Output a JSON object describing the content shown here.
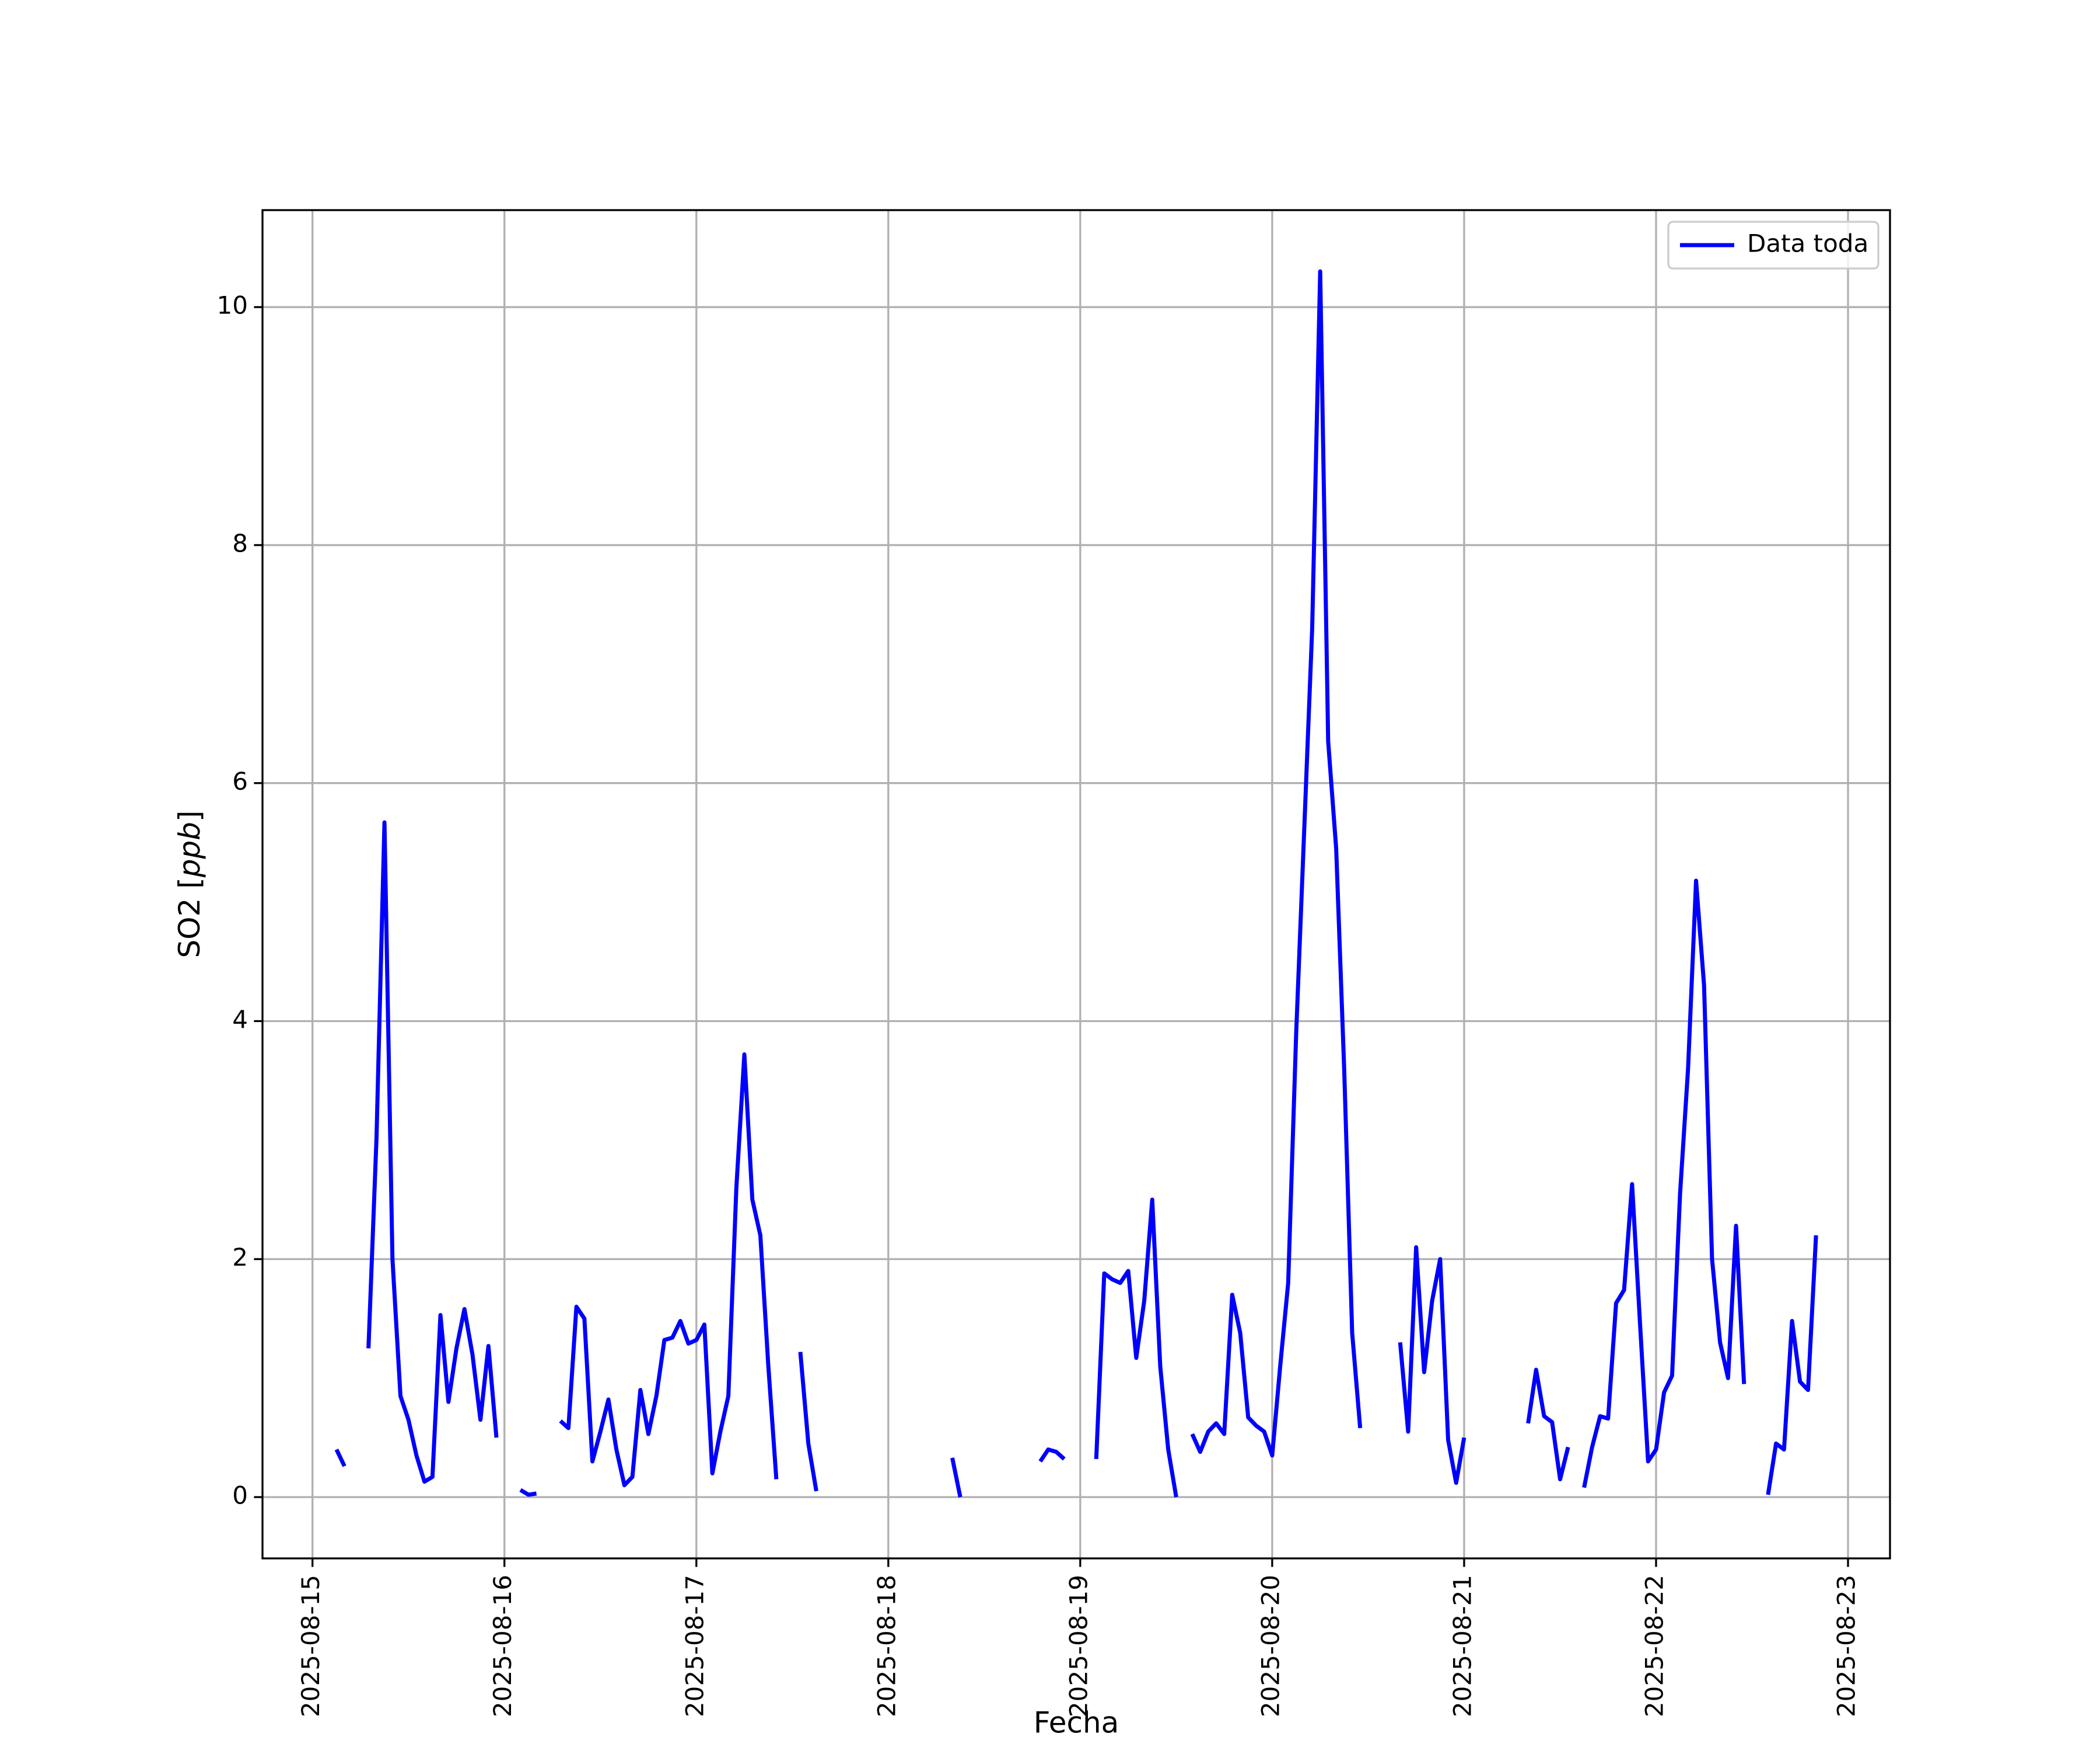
{
  "chart_data": {
    "type": "line",
    "xlabel": "Fecha",
    "ylabel": "SO2 [ppb]",
    "x": [
      "2025-08-15 03:00",
      "2025-08-15 04:00",
      "2025-08-15 05:00",
      "2025-08-15 07:00",
      "2025-08-15 08:00",
      "2025-08-15 09:00",
      "2025-08-15 10:00",
      "2025-08-15 11:00",
      "2025-08-15 12:00",
      "2025-08-15 13:00",
      "2025-08-15 14:00",
      "2025-08-15 15:00",
      "2025-08-15 16:00",
      "2025-08-15 17:00",
      "2025-08-15 18:00",
      "2025-08-15 19:00",
      "2025-08-15 20:00",
      "2025-08-15 21:00",
      "2025-08-15 22:00",
      "2025-08-15 23:00",
      "2025-08-16 00:00",
      "2025-08-16 02:00",
      "2025-08-16 03:00",
      "2025-08-16 04:00",
      "2025-08-16 05:00",
      "2025-08-16 07:00",
      "2025-08-16 08:00",
      "2025-08-16 09:00",
      "2025-08-16 10:00",
      "2025-08-16 11:00",
      "2025-08-16 12:00",
      "2025-08-16 13:00",
      "2025-08-16 14:00",
      "2025-08-16 15:00",
      "2025-08-16 16:00",
      "2025-08-16 17:00",
      "2025-08-16 18:00",
      "2025-08-16 19:00",
      "2025-08-16 20:00",
      "2025-08-16 21:00",
      "2025-08-16 22:00",
      "2025-08-16 23:00",
      "2025-08-17 00:00",
      "2025-08-17 01:00",
      "2025-08-17 02:00",
      "2025-08-17 03:00",
      "2025-08-17 04:00",
      "2025-08-17 05:00",
      "2025-08-17 06:00",
      "2025-08-17 07:00",
      "2025-08-17 08:00",
      "2025-08-17 09:00",
      "2025-08-17 10:00",
      "2025-08-17 11:00",
      "2025-08-17 13:00",
      "2025-08-17 14:00",
      "2025-08-17 15:00",
      "2025-08-17 16:00",
      "2025-08-18 08:00",
      "2025-08-18 09:00",
      "2025-08-18 10:00",
      "2025-08-18 19:00",
      "2025-08-18 20:00",
      "2025-08-18 21:00",
      "2025-08-18 22:00",
      "2025-08-18 23:00",
      "2025-08-19 02:00",
      "2025-08-19 03:00",
      "2025-08-19 04:00",
      "2025-08-19 05:00",
      "2025-08-19 06:00",
      "2025-08-19 07:00",
      "2025-08-19 08:00",
      "2025-08-19 09:00",
      "2025-08-19 10:00",
      "2025-08-19 11:00",
      "2025-08-19 12:00",
      "2025-08-19 13:00",
      "2025-08-19 14:00",
      "2025-08-19 15:00",
      "2025-08-19 16:00",
      "2025-08-19 17:00",
      "2025-08-19 18:00",
      "2025-08-19 19:00",
      "2025-08-19 20:00",
      "2025-08-19 21:00",
      "2025-08-19 22:00",
      "2025-08-19 23:00",
      "2025-08-20 00:00",
      "2025-08-20 01:00",
      "2025-08-20 02:00",
      "2025-08-20 03:00",
      "2025-08-20 04:00",
      "2025-08-20 05:00",
      "2025-08-20 06:00",
      "2025-08-20 07:00",
      "2025-08-20 08:00",
      "2025-08-20 09:00",
      "2025-08-20 10:00",
      "2025-08-20 11:00",
      "2025-08-20 12:00",
      "2025-08-20 16:00",
      "2025-08-20 17:00",
      "2025-08-20 18:00",
      "2025-08-20 19:00",
      "2025-08-20 20:00",
      "2025-08-20 21:00",
      "2025-08-20 22:00",
      "2025-08-20 23:00",
      "2025-08-21 00:00",
      "2025-08-21 01:00",
      "2025-08-21 08:00",
      "2025-08-21 09:00",
      "2025-08-21 10:00",
      "2025-08-21 11:00",
      "2025-08-21 12:00",
      "2025-08-21 13:00",
      "2025-08-21 14:00",
      "2025-08-21 15:00",
      "2025-08-21 16:00",
      "2025-08-21 17:00",
      "2025-08-21 18:00",
      "2025-08-21 19:00",
      "2025-08-21 20:00",
      "2025-08-21 21:00",
      "2025-08-21 22:00",
      "2025-08-21 23:00",
      "2025-08-22 00:00",
      "2025-08-22 01:00",
      "2025-08-22 02:00",
      "2025-08-22 03:00",
      "2025-08-22 04:00",
      "2025-08-22 05:00",
      "2025-08-22 06:00",
      "2025-08-22 07:00",
      "2025-08-22 08:00",
      "2025-08-22 09:00",
      "2025-08-22 10:00",
      "2025-08-22 11:00",
      "2025-08-22 12:00",
      "2025-08-22 14:00",
      "2025-08-22 15:00",
      "2025-08-22 16:00",
      "2025-08-22 17:00",
      "2025-08-22 18:00",
      "2025-08-22 19:00",
      "2025-08-22 20:00"
    ],
    "series": [
      {
        "name": "Data toda",
        "color": "#0000ff",
        "values": [
          0.4,
          0.26,
          null,
          1.25,
          3.01,
          5.67,
          2.0,
          0.85,
          0.65,
          0.35,
          0.13,
          0.17,
          1.53,
          0.8,
          1.25,
          1.58,
          1.2,
          0.65,
          1.27,
          0.5,
          null,
          0.06,
          0.02,
          0.03,
          null,
          0.64,
          0.58,
          1.6,
          1.5,
          0.3,
          0.55,
          0.82,
          0.4,
          0.1,
          0.17,
          0.9,
          0.53,
          0.85,
          1.32,
          1.34,
          1.48,
          1.29,
          1.32,
          1.45,
          0.2,
          0.55,
          0.85,
          2.6,
          3.72,
          2.5,
          2.2,
          1.1,
          0.15,
          null,
          1.22,
          0.45,
          0.05,
          null,
          0.33,
          0.0,
          null,
          0.3,
          0.4,
          0.38,
          0.32,
          null,
          0.32,
          1.88,
          1.83,
          1.8,
          1.9,
          1.17,
          1.65,
          2.5,
          1.1,
          0.4,
          0.0,
          null,
          0.53,
          0.38,
          0.55,
          0.62,
          0.53,
          1.7,
          1.38,
          0.67,
          0.6,
          0.55,
          0.35,
          1.1,
          1.8,
          3.9,
          5.6,
          7.3,
          10.3,
          6.35,
          5.45,
          3.6,
          1.38,
          0.58,
          null,
          1.3,
          0.55,
          2.1,
          1.05,
          1.65,
          2.0,
          0.48,
          0.12,
          0.5,
          null,
          0.62,
          1.07,
          0.68,
          0.63,
          0.15,
          0.42,
          null,
          0.08,
          0.42,
          0.68,
          0.66,
          1.63,
          1.74,
          2.63,
          1.45,
          0.3,
          0.4,
          0.88,
          1.02,
          2.55,
          3.6,
          5.18,
          4.3,
          2.0,
          1.3,
          1.0,
          2.28,
          0.95,
          null,
          0.02,
          0.45,
          0.4,
          1.48,
          0.97,
          0.9,
          2.2
        ]
      }
    ],
    "xlim": [
      "2025-08-14 17:45",
      "2025-08-23 05:15"
    ],
    "xticks": [
      "2025-08-15",
      "2025-08-16",
      "2025-08-17",
      "2025-08-18",
      "2025-08-19",
      "2025-08-20",
      "2025-08-21",
      "2025-08-22",
      "2025-08-23"
    ],
    "ylim": [
      -0.515,
      10.815
    ],
    "yticks": [
      0,
      2,
      4,
      6,
      8,
      10
    ],
    "grid": true,
    "legend": "upper right"
  }
}
